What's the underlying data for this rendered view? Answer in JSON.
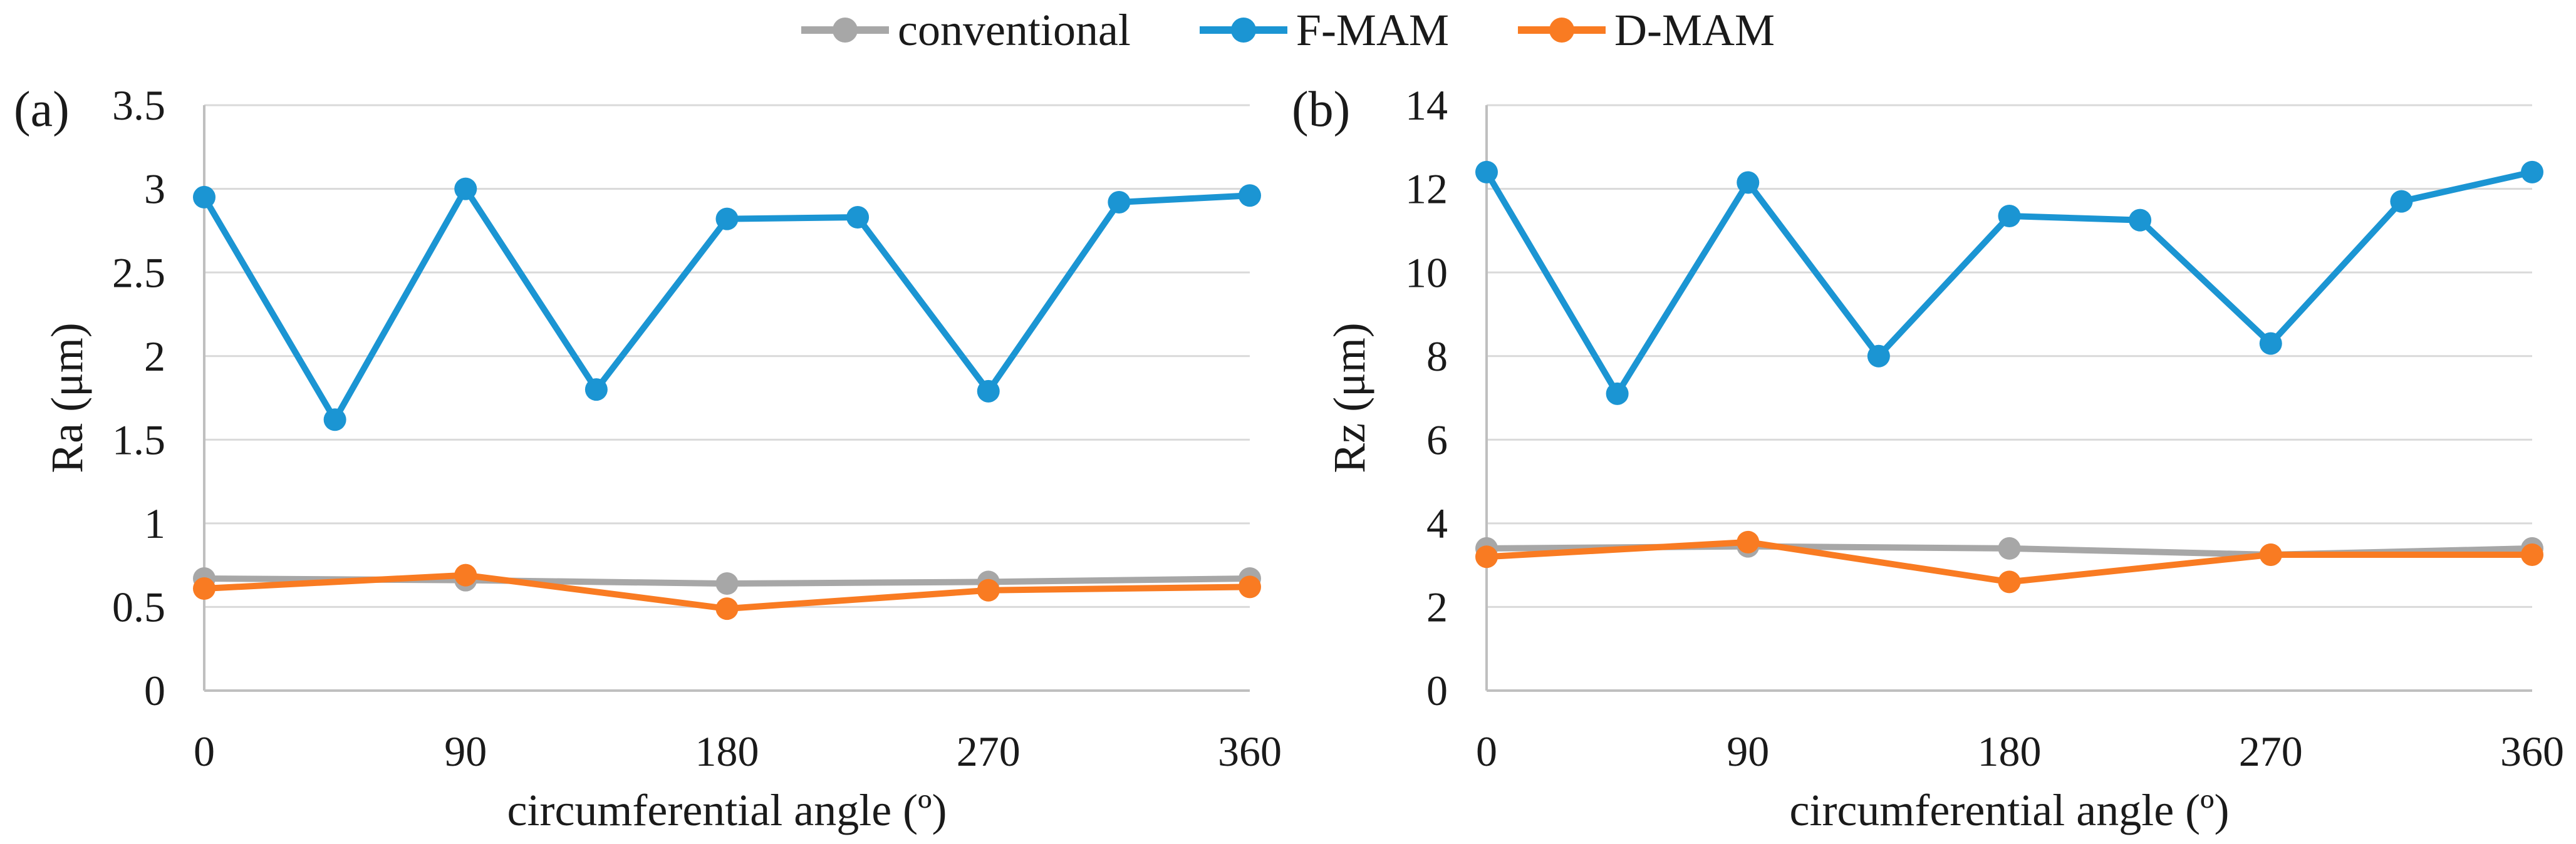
{
  "figure": {
    "panel_a_label": "(a)",
    "panel_b_label": "(b)"
  },
  "colors": {
    "conventional": "#A7A7A7",
    "f_mam": "#1B95D3",
    "d_mam": "#F97B22",
    "gridline": "#D9D9D9",
    "axis_line": "#BFBFBF",
    "text": "#1a1a1a"
  },
  "legend": {
    "position": "top-center",
    "items": [
      {
        "label": "conventional",
        "color": "#A7A7A7"
      },
      {
        "label": "F-MAM",
        "color": "#1B95D3"
      },
      {
        "label": "D-MAM",
        "color": "#F97B22"
      }
    ]
  },
  "chart_data": [
    {
      "type": "line",
      "panel": "(a)",
      "title": "",
      "xlabel": "circumferential angle (º)",
      "ylabel": "Ra (μm)",
      "xlim": [
        0,
        360
      ],
      "ylim": [
        0,
        3.5
      ],
      "xticks": [
        0,
        90,
        180,
        270,
        360
      ],
      "xtick_labels": [
        "0",
        "90",
        "180",
        "270",
        "360"
      ],
      "ytick_labels": [
        "0",
        "0.5",
        "1",
        "1.5",
        "2",
        "2.5",
        "3",
        "3.5"
      ],
      "yticks": [
        0,
        0.5,
        1,
        1.5,
        2,
        2.5,
        3,
        3.5
      ],
      "grid": "horizontal",
      "legend_position": "top",
      "series": [
        {
          "name": "conventional",
          "color": "#A7A7A7",
          "marker": "circle",
          "x": [
            0,
            90,
            180,
            270,
            360
          ],
          "values": [
            0.67,
            0.66,
            0.64,
            0.65,
            0.67
          ]
        },
        {
          "name": "F-MAM",
          "color": "#1B95D3",
          "marker": "circle",
          "x": [
            0,
            45,
            90,
            135,
            180,
            225,
            270,
            315,
            360
          ],
          "values": [
            2.95,
            1.62,
            3.0,
            1.8,
            2.82,
            2.83,
            1.79,
            2.92,
            2.96
          ]
        },
        {
          "name": "D-MAM",
          "color": "#F97B22",
          "marker": "circle",
          "x": [
            0,
            90,
            180,
            270,
            360
          ],
          "values": [
            0.61,
            0.69,
            0.49,
            0.6,
            0.62
          ]
        }
      ]
    },
    {
      "type": "line",
      "panel": "(b)",
      "title": "",
      "xlabel": "circumferential angle (º)",
      "ylabel": "Rz (μm)",
      "xlim": [
        0,
        360
      ],
      "ylim": [
        0,
        14
      ],
      "xticks": [
        0,
        90,
        180,
        270,
        360
      ],
      "xtick_labels": [
        "0",
        "90",
        "180",
        "270",
        "360"
      ],
      "ytick_labels": [
        "0",
        "2",
        "4",
        "6",
        "8",
        "10",
        "12",
        "14"
      ],
      "yticks": [
        0,
        2,
        4,
        6,
        8,
        10,
        12,
        14
      ],
      "grid": "horizontal",
      "legend_position": "top",
      "series": [
        {
          "name": "conventional",
          "color": "#A7A7A7",
          "marker": "circle",
          "x": [
            0,
            90,
            180,
            270,
            360
          ],
          "values": [
            3.4,
            3.45,
            3.4,
            3.25,
            3.4
          ]
        },
        {
          "name": "F-MAM",
          "color": "#1B95D3",
          "marker": "circle",
          "x": [
            0,
            45,
            90,
            135,
            180,
            225,
            270,
            315,
            360
          ],
          "values": [
            12.4,
            7.1,
            12.15,
            8.0,
            11.35,
            11.25,
            8.3,
            11.7,
            12.4
          ]
        },
        {
          "name": "D-MAM",
          "color": "#F97B22",
          "marker": "circle",
          "x": [
            0,
            90,
            180,
            270,
            360
          ],
          "values": [
            3.2,
            3.55,
            2.6,
            3.25,
            3.25
          ]
        }
      ]
    }
  ]
}
